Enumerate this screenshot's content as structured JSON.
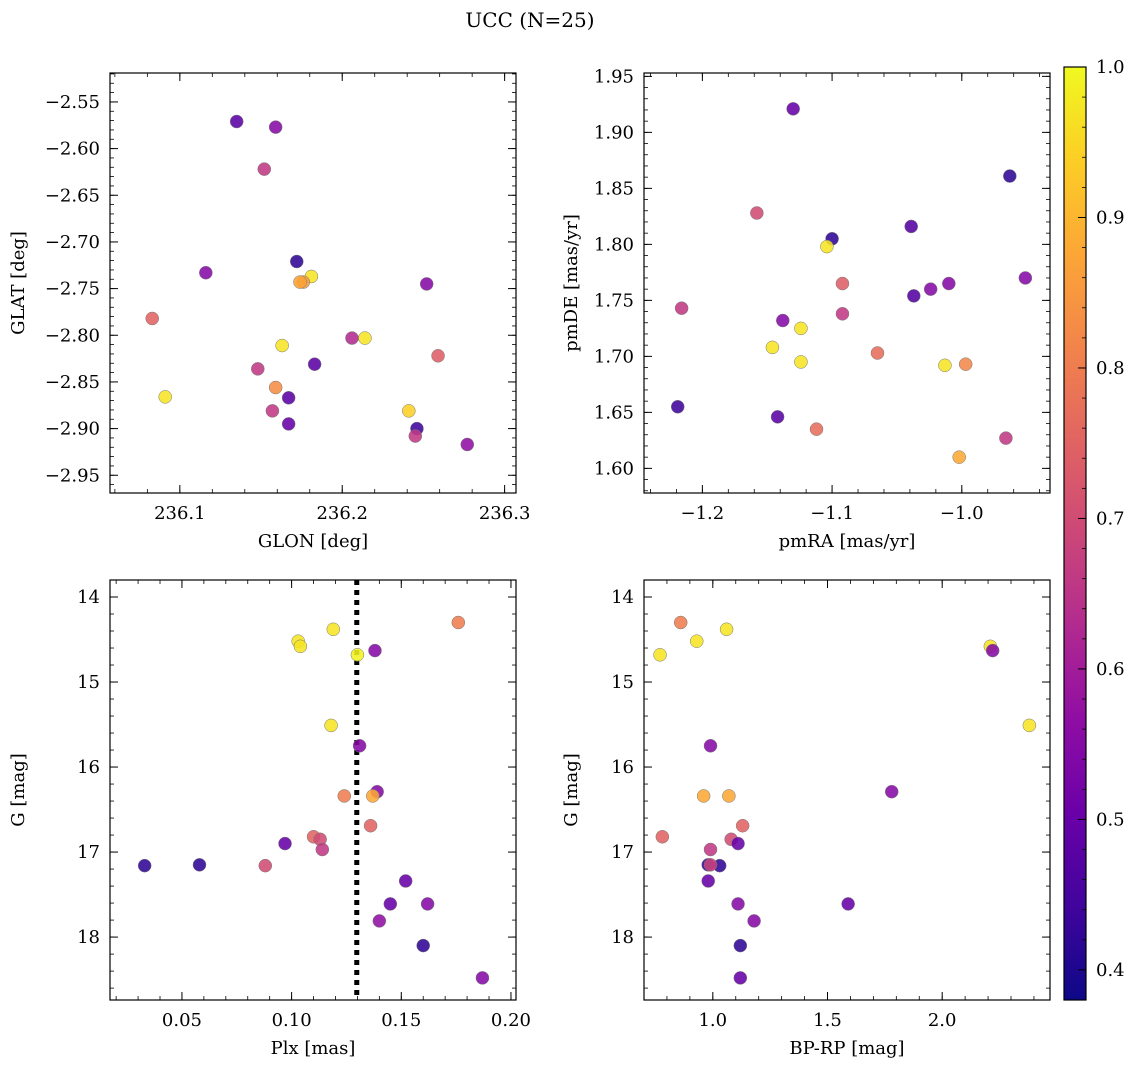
{
  "figure": {
    "title": "UCC (N=25)"
  },
  "colorbar": {
    "ticks": [
      0.4,
      0.5,
      0.6,
      0.7,
      0.8,
      0.9,
      1.0
    ],
    "tick_labels": [
      "0.4",
      "0.5",
      "0.6",
      "0.7",
      "0.8",
      "0.9",
      "1.0"
    ],
    "range": [
      0.38,
      1.0
    ],
    "colormap": "plasma"
  },
  "chart_data": [
    {
      "type": "scatter",
      "id": "glon-glat",
      "xlabel": "GLON [deg]",
      "ylabel": "GLAT [deg]",
      "xlim": [
        236.057,
        236.307
      ],
      "ylim": [
        -2.969,
        -2.519
      ],
      "y_inverted": false,
      "xticks": [
        236.1,
        236.2,
        236.3
      ],
      "xtick_labels": [
        "236.1",
        "236.2",
        "236.3"
      ],
      "yticks": [
        -2.55,
        -2.6,
        -2.65,
        -2.7,
        -2.75,
        -2.8,
        -2.85,
        -2.9,
        -2.95
      ],
      "ytick_labels": [
        "−2.55",
        "−2.60",
        "−2.65",
        "−2.70",
        "−2.75",
        "−2.80",
        "−2.85",
        "−2.90",
        "−2.95"
      ],
      "x": [
        236.135,
        236.159,
        236.152,
        236.116,
        236.172,
        236.181,
        236.176,
        236.174,
        236.083,
        236.163,
        236.183,
        236.206,
        236.214,
        236.252,
        236.259,
        236.148,
        236.159,
        236.091,
        236.167,
        236.157,
        236.167,
        236.241,
        236.246,
        236.245,
        236.277
      ],
      "y": [
        -2.571,
        -2.577,
        -2.622,
        -2.733,
        -2.721,
        -2.737,
        -2.743,
        -2.743,
        -2.782,
        -2.811,
        -2.831,
        -2.803,
        -2.803,
        -2.745,
        -2.822,
        -2.836,
        -2.856,
        -2.866,
        -2.867,
        -2.881,
        -2.895,
        -2.881,
        -2.9,
        -2.908,
        -2.917
      ],
      "c": [
        0.48,
        0.55,
        0.66,
        0.55,
        0.42,
        0.97,
        0.85,
        0.87,
        0.75,
        0.97,
        0.48,
        0.63,
        0.97,
        0.55,
        0.74,
        0.66,
        0.83,
        0.97,
        0.48,
        0.66,
        0.5,
        0.94,
        0.44,
        0.66,
        0.57
      ]
    },
    {
      "type": "scatter",
      "id": "pmra-pmde",
      "xlabel": "pmRA [mas/yr]",
      "ylabel": "pmDE [mas/yr]",
      "xlim": [
        -1.245,
        -0.932
      ],
      "ylim": [
        1.578,
        1.953
      ],
      "y_inverted": false,
      "xticks": [
        -1.2,
        -1.1,
        -1.0
      ],
      "xtick_labels": [
        "−1.2",
        "−1.1",
        "−1.0"
      ],
      "yticks": [
        1.6,
        1.65,
        1.7,
        1.75,
        1.8,
        1.85,
        1.9,
        1.95
      ],
      "ytick_labels": [
        "1.60",
        "1.65",
        "1.70",
        "1.75",
        "1.80",
        "1.85",
        "1.90",
        "1.95"
      ],
      "x": [
        -1.13,
        -0.963,
        -1.158,
        -1.1,
        -1.104,
        -1.039,
        -1.216,
        -1.092,
        -1.037,
        -1.024,
        -1.01,
        -0.951,
        -1.138,
        -1.092,
        -1.124,
        -1.146,
        -1.065,
        -1.124,
        -1.013,
        -0.997,
        -1.219,
        -1.142,
        -1.112,
        -1.002,
        -0.966
      ],
      "y": [
        1.921,
        1.861,
        1.828,
        1.805,
        1.798,
        1.816,
        1.743,
        1.765,
        1.754,
        1.76,
        1.765,
        1.77,
        1.732,
        1.738,
        1.725,
        1.708,
        1.703,
        1.695,
        1.692,
        1.693,
        1.655,
        1.646,
        1.635,
        1.61,
        1.627
      ],
      "c": [
        0.5,
        0.42,
        0.7,
        0.42,
        0.97,
        0.47,
        0.66,
        0.74,
        0.47,
        0.55,
        0.55,
        0.55,
        0.55,
        0.66,
        0.97,
        0.97,
        0.77,
        0.97,
        0.97,
        0.82,
        0.44,
        0.48,
        0.77,
        0.88,
        0.66
      ]
    },
    {
      "type": "scatter",
      "id": "plx-g",
      "xlabel": "Plx [mas]",
      "ylabel": "G [mag]",
      "xlim": [
        0.0172,
        0.2023
      ],
      "ylim": [
        18.74,
        13.8
      ],
      "y_inverted": true,
      "vline": {
        "x": 0.1297,
        "style": "dotted"
      },
      "xticks": [
        0.05,
        0.1,
        0.15,
        0.2
      ],
      "xtick_labels": [
        "0.05",
        "0.10",
        "0.15",
        "0.20"
      ],
      "yticks": [
        14,
        15,
        16,
        17,
        18
      ],
      "ytick_labels": [
        "14",
        "15",
        "16",
        "17",
        "18"
      ],
      "x": [
        0.176,
        0.119,
        0.103,
        0.104,
        0.13,
        0.138,
        0.118,
        0.131,
        0.139,
        0.124,
        0.137,
        0.136,
        0.11,
        0.113,
        0.097,
        0.114,
        0.033,
        0.058,
        0.088,
        0.152,
        0.145,
        0.162,
        0.14,
        0.16,
        0.187
      ],
      "y": [
        14.3,
        14.38,
        14.52,
        14.58,
        14.68,
        14.63,
        15.51,
        15.75,
        16.29,
        16.34,
        16.34,
        16.69,
        16.82,
        16.85,
        16.9,
        16.97,
        17.16,
        17.15,
        17.16,
        17.34,
        17.61,
        17.61,
        17.81,
        18.1,
        18.48
      ],
      "c": [
        0.8,
        0.97,
        0.97,
        0.97,
        0.99,
        0.55,
        0.97,
        0.55,
        0.55,
        0.8,
        0.88,
        0.75,
        0.75,
        0.7,
        0.5,
        0.66,
        0.42,
        0.42,
        0.7,
        0.5,
        0.5,
        0.55,
        0.57,
        0.42,
        0.55
      ]
    },
    {
      "type": "scatter",
      "id": "bprp-g",
      "xlabel": "BP-RP [mag]",
      "ylabel": "G [mag]",
      "xlim": [
        0.7,
        2.47
      ],
      "ylim": [
        18.74,
        13.8
      ],
      "y_inverted": true,
      "xticks": [
        1.0,
        1.5,
        2.0
      ],
      "xtick_labels": [
        "1.0",
        "1.5",
        "2.0"
      ],
      "yticks": [
        14,
        15,
        16,
        17,
        18
      ],
      "ytick_labels": [
        "14",
        "15",
        "16",
        "17",
        "18"
      ],
      "x": [
        0.86,
        1.06,
        0.93,
        0.77,
        2.21,
        2.22,
        2.38,
        0.99,
        1.78,
        0.96,
        1.07,
        1.13,
        0.78,
        1.08,
        1.11,
        0.99,
        1.03,
        0.98,
        0.98,
        1.11,
        1.59,
        1.18,
        1.12,
        1.12,
        0.99
      ],
      "y": [
        14.3,
        14.38,
        14.52,
        14.68,
        14.58,
        14.63,
        15.51,
        15.75,
        16.29,
        16.34,
        16.34,
        16.69,
        16.82,
        16.85,
        16.9,
        16.97,
        17.16,
        17.15,
        17.34,
        17.61,
        17.61,
        17.81,
        18.1,
        18.48,
        17.15
      ],
      "c": [
        0.8,
        0.97,
        0.97,
        0.97,
        0.97,
        0.55,
        0.97,
        0.55,
        0.55,
        0.88,
        0.88,
        0.75,
        0.75,
        0.7,
        0.5,
        0.66,
        0.42,
        0.42,
        0.5,
        0.55,
        0.5,
        0.55,
        0.42,
        0.5,
        0.68
      ]
    }
  ]
}
